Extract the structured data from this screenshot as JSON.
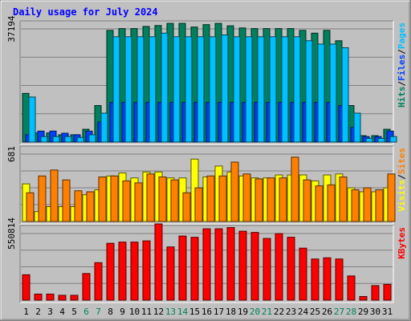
{
  "chart_data": {
    "type": "bar",
    "title": "Daily usage for July 2024",
    "categories": [
      "1",
      "2",
      "3",
      "4",
      "5",
      "6",
      "7",
      "8",
      "9",
      "10",
      "11",
      "12",
      "13",
      "14",
      "15",
      "16",
      "17",
      "18",
      "19",
      "20",
      "21",
      "22",
      "23",
      "24",
      "25",
      "26",
      "27",
      "28",
      "29",
      "30",
      "31"
    ],
    "weekend_days": [
      "6",
      "7",
      "13",
      "14",
      "20",
      "21",
      "27",
      "28"
    ],
    "colors": {
      "title": "#0000ff",
      "hits": "#00805c",
      "files": "#0040ff",
      "pages": "#00c0ff",
      "visits": "#ffff00",
      "sites": "#ff8000",
      "kbytes": "#ff0000",
      "weekend_label": "#00805c",
      "weekday_label": "#000000"
    },
    "panels": [
      {
        "key": "top",
        "ymax_label": "37194",
        "ymax": 37194,
        "legend": [
          {
            "text": "Hits",
            "color": "#00805c"
          },
          {
            "text": "/",
            "color": "#000000"
          },
          {
            "text": "Files",
            "color": "#0040ff"
          },
          {
            "text": "/",
            "color": "#000000"
          },
          {
            "text": "Pages",
            "color": "#00c0ff"
          }
        ],
        "series": [
          {
            "name": "Hits",
            "color": "#00805c",
            "values": [
              16000,
              3000,
              3000,
              2400,
              2400,
              4200,
              12000,
              36700,
              37300,
              37300,
              38000,
              38300,
              39000,
              39000,
              37800,
              38600,
              39000,
              38200,
              37500,
              37300,
              37300,
              37300,
              37300,
              36700,
              35800,
              36700,
              33300,
              12000,
              2100,
              2100,
              4200
            ]
          },
          {
            "name": "Files",
            "color": "#0040ff",
            "values": [
              2400,
              3600,
              3600,
              2900,
              2400,
              3600,
              6600,
              13000,
              13000,
              13000,
              13000,
              13000,
              13000,
              13000,
              13000,
              13000,
              13000,
              13000,
              13000,
              13000,
              13000,
              13000,
              13000,
              13000,
              13000,
              13000,
              12000,
              4800,
              1800,
              1800,
              3600
            ]
          },
          {
            "name": "Pages",
            "color": "#00c0ff",
            "values": [
              14800,
              1800,
              1800,
              1800,
              1500,
              2400,
              9500,
              34600,
              34600,
              34600,
              34600,
              35800,
              34600,
              34600,
              34600,
              34600,
              35200,
              34600,
              34600,
              34600,
              34600,
              34600,
              34600,
              33300,
              32200,
              32200,
              31000,
              9500,
              1200,
              1200,
              1800
            ]
          }
        ]
      },
      {
        "key": "mid",
        "ymax_label": "681",
        "ymax": 681,
        "legend": [
          {
            "text": "Visits",
            "color": "#ffff00"
          },
          {
            "text": "/",
            "color": "#000000"
          },
          {
            "text": "Sites",
            "color": "#ff8000"
          }
        ],
        "series": [
          {
            "name": "Visits",
            "color": "#ffff00",
            "values": [
              380,
              100,
              150,
              150,
              150,
              270,
              320,
              460,
              490,
              440,
              500,
              500,
              440,
              440,
              630,
              450,
              560,
              500,
              460,
              440,
              440,
              470,
              470,
              470,
              410,
              470,
              480,
              340,
              300,
              300,
              340
            ]
          },
          {
            "name": "Sites",
            "color": "#ff8000",
            "values": [
              290,
              460,
              520,
              420,
              310,
              300,
              450,
              460,
              410,
              390,
              480,
              450,
              420,
              290,
              340,
              460,
              460,
              600,
              480,
              430,
              440,
              440,
              650,
              420,
              360,
              370,
              450,
              320,
              340,
              320,
              480
            ]
          }
        ]
      },
      {
        "key": "bottom",
        "ymax_label": "550814",
        "ymax": 550814,
        "legend": [
          {
            "text": "KBytes",
            "color": "#ff0000"
          }
        ],
        "series": [
          {
            "name": "KBytes",
            "color": "#ff0000",
            "values": [
              210000,
              50000,
              50000,
              40000,
              40000,
              220000,
              310000,
              470000,
              480000,
              480000,
              490000,
              630000,
              440000,
              530000,
              520000,
              590000,
              590000,
              600000,
              570000,
              560000,
              510000,
              550000,
              520000,
              430000,
              340000,
              350000,
              340000,
              200000,
              30000,
              120000,
              130000
            ]
          }
        ]
      }
    ]
  }
}
